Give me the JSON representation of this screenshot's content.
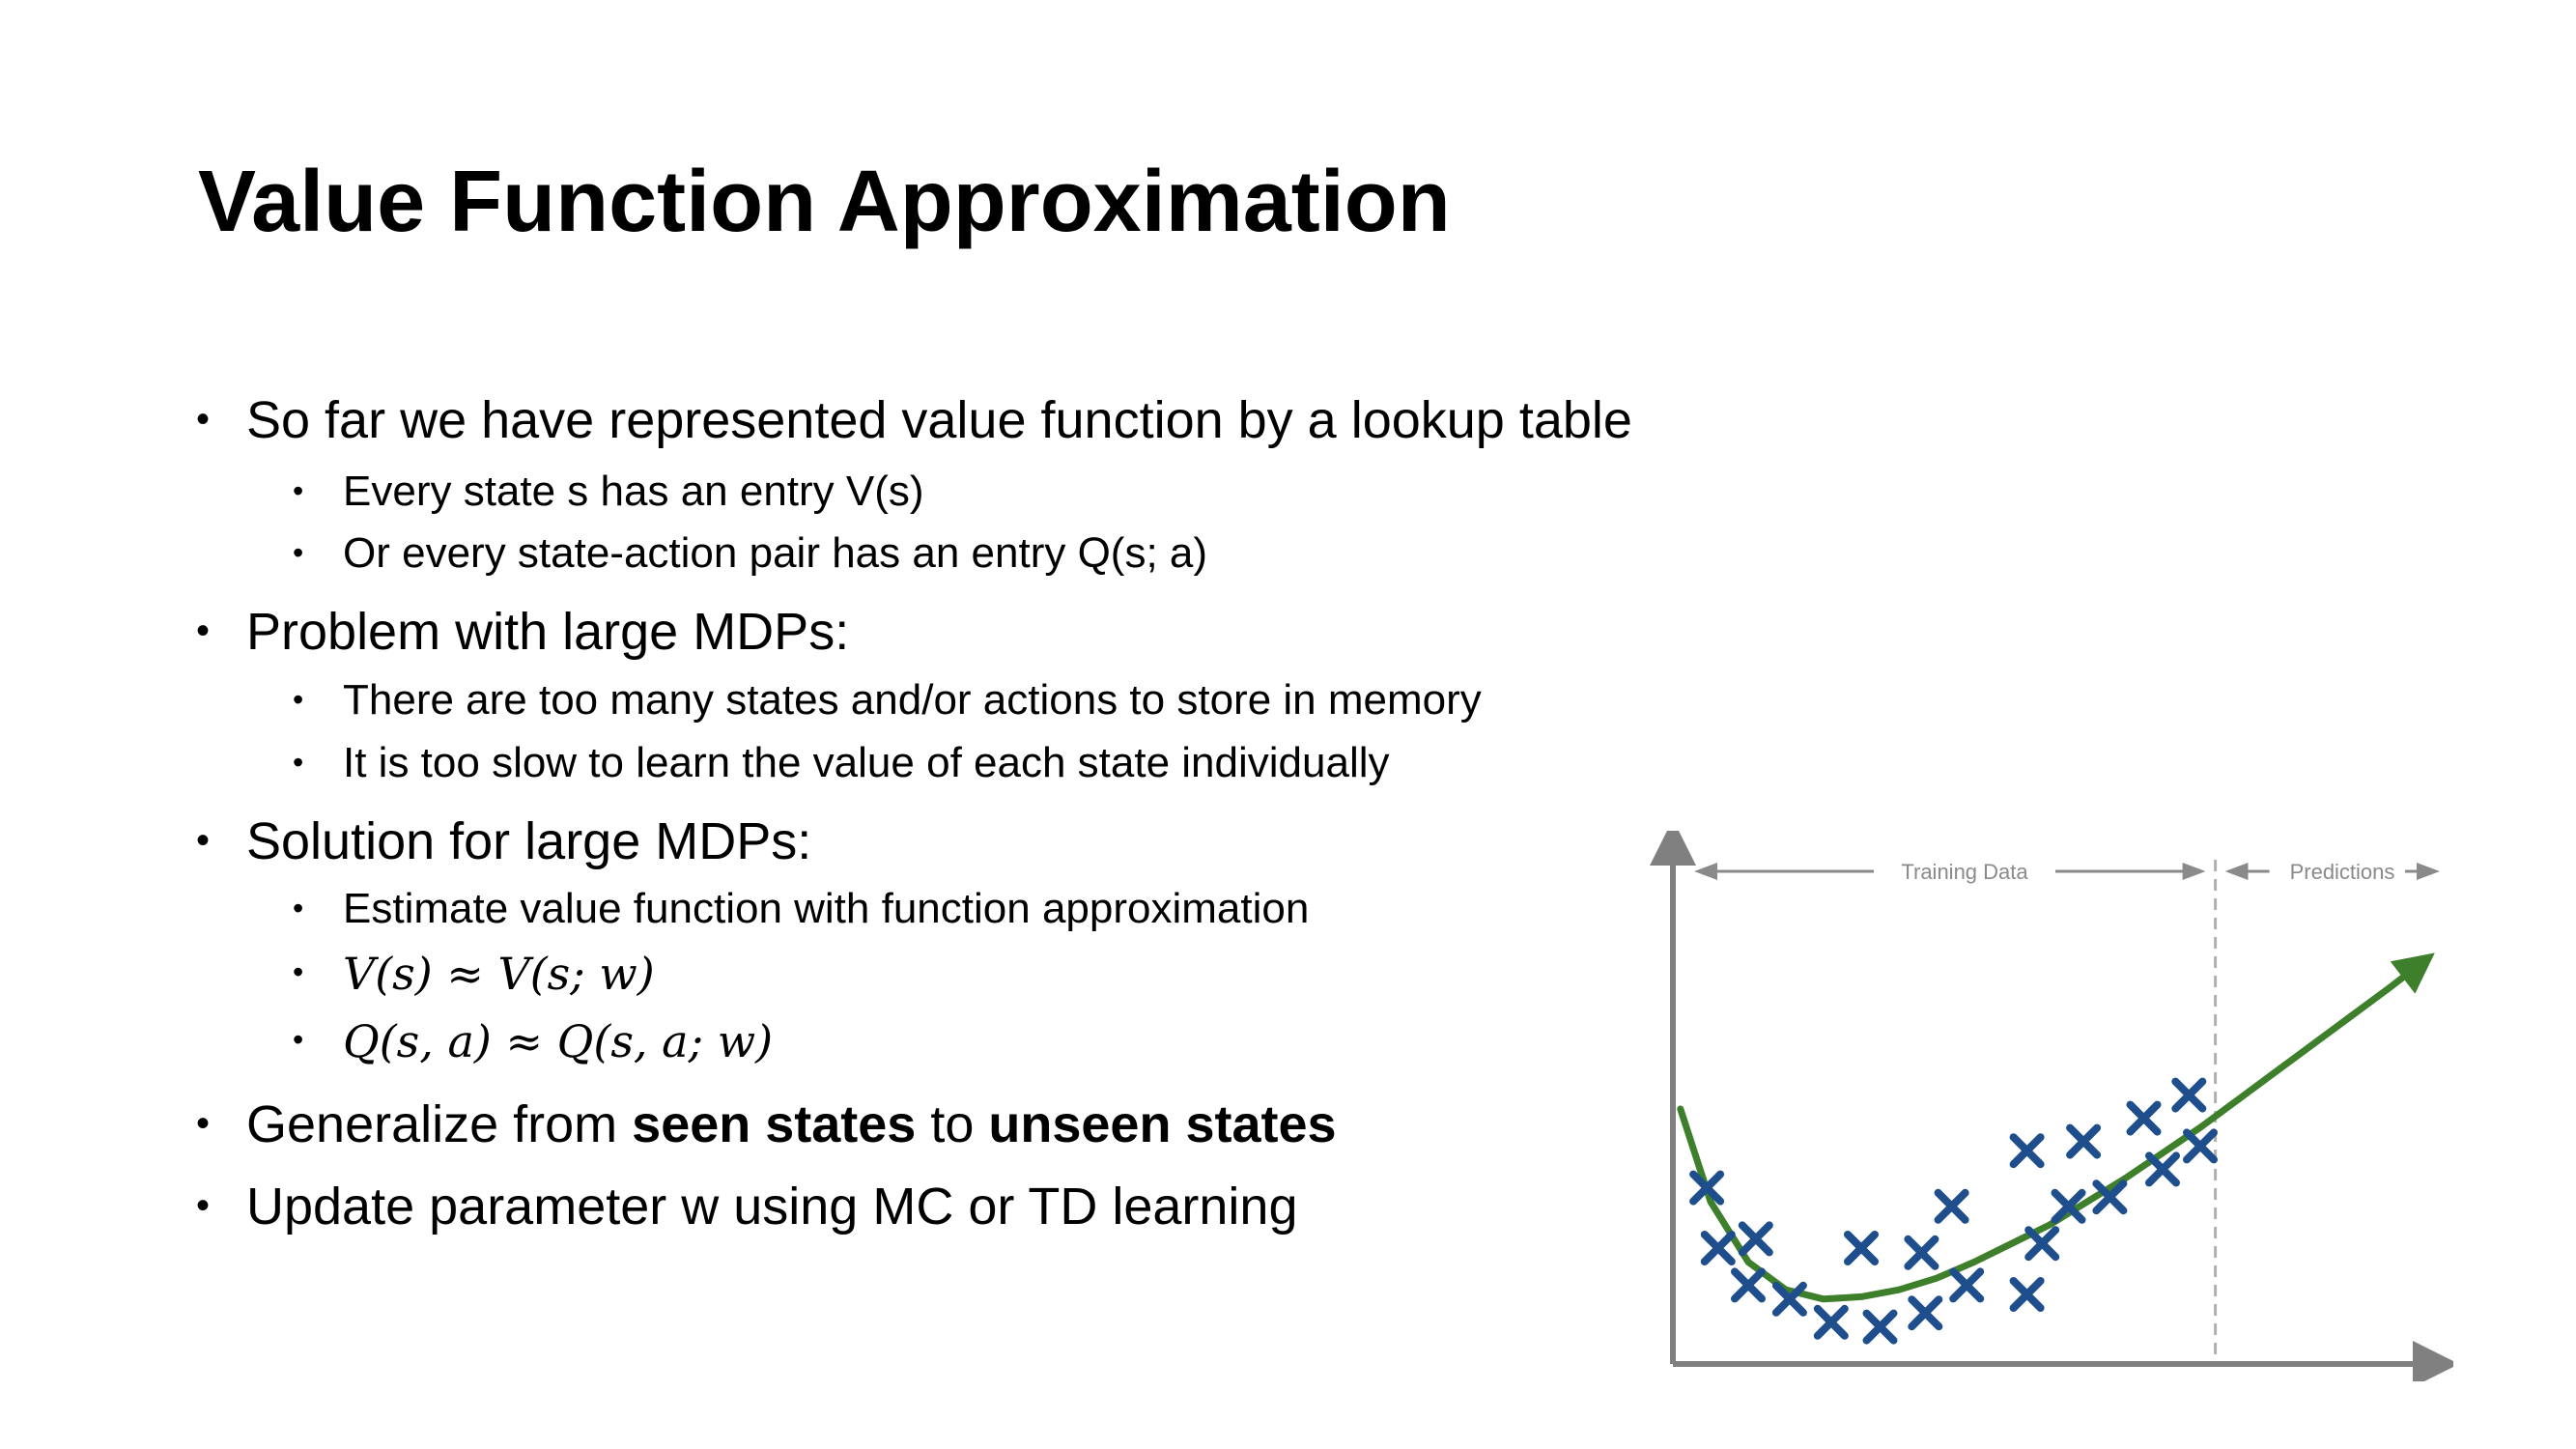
{
  "slide": {
    "title": "Value Function Approximation"
  },
  "bullets": {
    "b1": "So far we have represented value function by a lookup table",
    "b1_1": "Every state s has an entry V(s)",
    "b1_2": "Or every state-action pair has an entry Q(s; a)",
    "b2": "Problem with large MDPs:",
    "b2_1": "There are too many states and/or actions to store in memory",
    "b2_2": "It is too slow to learn the value of each state individually",
    "b3": "Solution for large MDPs:",
    "b3_1": "Estimate value function with function approximation",
    "b3_2": "V(s) ≈ V(s; w)",
    "b3_3": "Q(s, a) ≈ Q(s, a; w)",
    "b4_pre": "Generalize from ",
    "b4_bold1": "seen states",
    "b4_mid": " to ",
    "b4_bold2": "unseen states",
    "b5": "Update parameter w using MC or TD learning"
  },
  "chart_data": {
    "type": "scatter",
    "title": "",
    "xlabel": "",
    "ylabel": "",
    "xlim": [
      0,
      100
    ],
    "ylim": [
      0,
      100
    ],
    "grid": false,
    "annotations": {
      "training": "Training Data",
      "predictions": "Predictions"
    },
    "split_x": 72,
    "colors": {
      "points": "#1f4e8c",
      "curve": "#3d7f2a",
      "axis": "#808080",
      "annotation": "#8a8a8a"
    },
    "points": [
      {
        "x": 4.5,
        "y": 38
      },
      {
        "x": 6,
        "y": 25
      },
      {
        "x": 11,
        "y": 27
      },
      {
        "x": 10,
        "y": 17
      },
      {
        "x": 15.5,
        "y": 14
      },
      {
        "x": 21,
        "y": 9
      },
      {
        "x": 27.5,
        "y": 8
      },
      {
        "x": 25,
        "y": 25
      },
      {
        "x": 33,
        "y": 24
      },
      {
        "x": 33.5,
        "y": 11
      },
      {
        "x": 39,
        "y": 17
      },
      {
        "x": 37,
        "y": 34
      },
      {
        "x": 47,
        "y": 15
      },
      {
        "x": 49,
        "y": 26
      },
      {
        "x": 47,
        "y": 46
      },
      {
        "x": 52.5,
        "y": 34
      },
      {
        "x": 54.5,
        "y": 48
      },
      {
        "x": 58,
        "y": 36
      },
      {
        "x": 62.5,
        "y": 53
      },
      {
        "x": 65,
        "y": 42
      },
      {
        "x": 68.5,
        "y": 58
      },
      {
        "x": 70,
        "y": 47
      }
    ],
    "curve": [
      {
        "x": 1,
        "y": 55
      },
      {
        "x": 5,
        "y": 35
      },
      {
        "x": 10,
        "y": 22
      },
      {
        "x": 15,
        "y": 16
      },
      {
        "x": 20,
        "y": 14
      },
      {
        "x": 25,
        "y": 14.5
      },
      {
        "x": 30,
        "y": 16
      },
      {
        "x": 35,
        "y": 18.5
      },
      {
        "x": 40,
        "y": 22
      },
      {
        "x": 45,
        "y": 26
      },
      {
        "x": 50,
        "y": 30
      },
      {
        "x": 55,
        "y": 35
      },
      {
        "x": 60,
        "y": 40
      },
      {
        "x": 65,
        "y": 45.5
      },
      {
        "x": 70,
        "y": 51
      },
      {
        "x": 75,
        "y": 57
      },
      {
        "x": 80,
        "y": 63
      },
      {
        "x": 85,
        "y": 69
      },
      {
        "x": 90,
        "y": 75
      },
      {
        "x": 95,
        "y": 81
      },
      {
        "x": 99,
        "y": 86
      }
    ]
  }
}
